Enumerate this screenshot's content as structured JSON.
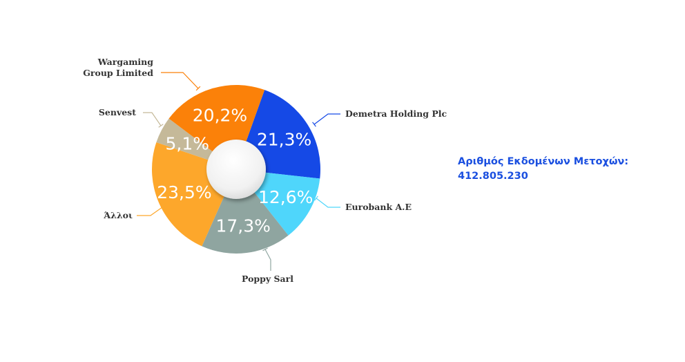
{
  "chart_data": {
    "type": "pie",
    "variant": "donut",
    "slices": [
      {
        "name": "Demetra Holding Plc",
        "value": 21.3,
        "label": "21,3%",
        "color": "#1549e6"
      },
      {
        "name": "Eurobank A.E",
        "value": 12.6,
        "label": "12,6%",
        "color": "#4fd6fb"
      },
      {
        "name": "Poppy Sarl",
        "value": 17.3,
        "label": "17,3%",
        "color": "#8fa5a0"
      },
      {
        "name": "Άλλοι",
        "value": 23.5,
        "label": "23,5%",
        "color": "#fda72b"
      },
      {
        "name": "Senvest",
        "value": 5.1,
        "label": "5,1%",
        "color": "#c5b999"
      },
      {
        "name": "Wargaming Group Limited",
        "value": 20.2,
        "label": "20,2%",
        "color": "#fb8109"
      }
    ],
    "display_names": [
      "Demetra Holding Plc",
      "Eurobank A.E",
      "Poppy Sarl",
      "Άλλοι",
      "Senvest",
      "Wargaming\nGroup Limited"
    ]
  },
  "info": {
    "title": "Αριθμός Εκδομένων Μετοχών:",
    "value": "412.805.230"
  }
}
